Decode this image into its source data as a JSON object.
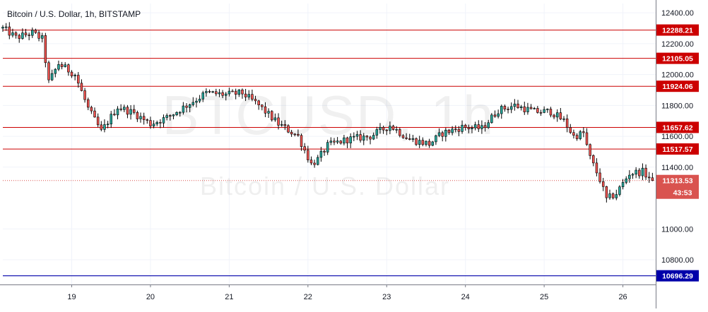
{
  "title": "Bitcoin / U.S. Dollar, 1h, BITSTAMP",
  "watermark": {
    "symbol": "BTCUSD, 1h",
    "description": "Bitcoin / U.S. Dollar"
  },
  "colors": {
    "up": "#26a69a",
    "down": "#ef5350",
    "candle_up_fill": "#ffffff",
    "candle_outline": "#000000",
    "level_line": "#cc0000",
    "level_badge": "#cc0000",
    "blue_line": "#0000aa",
    "current_badge": "#d9534f",
    "grid": "#f0f3fa",
    "axis": "#787b86"
  },
  "chart_data": {
    "type": "candlestick",
    "title": "Bitcoin / U.S. Dollar, 1h, BITSTAMP",
    "x_axis": {
      "ticks": [
        "19",
        "20",
        "21",
        "22",
        "23",
        "24",
        "25",
        "26"
      ],
      "tick_hours": [
        17,
        41,
        65,
        89,
        113,
        137,
        161,
        185
      ],
      "hour_range": [
        -4,
        195
      ]
    },
    "y_axis": {
      "range": [
        10640,
        12460
      ],
      "ticks": [
        12400,
        12200,
        12000,
        11800,
        11600,
        11400,
        11000,
        10800
      ],
      "tick_labels": [
        "12400.00",
        "12200.00",
        "12000.00",
        "11800.00",
        "11600.00",
        "11400.00",
        "11000.00",
        "10800.00"
      ]
    },
    "key_points": [
      [
        -4,
        12300
      ],
      [
        0,
        12240
      ],
      [
        5,
        12270
      ],
      [
        8,
        12230
      ],
      [
        10,
        11950
      ],
      [
        13,
        12070
      ],
      [
        18,
        12000
      ],
      [
        22,
        11780
      ],
      [
        26,
        11630
      ],
      [
        31,
        11790
      ],
      [
        36,
        11750
      ],
      [
        41,
        11680
      ],
      [
        46,
        11720
      ],
      [
        52,
        11800
      ],
      [
        58,
        11880
      ],
      [
        64,
        11870
      ],
      [
        69,
        11880
      ],
      [
        74,
        11800
      ],
      [
        80,
        11680
      ],
      [
        86,
        11600
      ],
      [
        90,
        11420
      ],
      [
        92,
        11450
      ],
      [
        95,
        11540
      ],
      [
        101,
        11580
      ],
      [
        108,
        11600
      ],
      [
        114,
        11670
      ],
      [
        120,
        11580
      ],
      [
        126,
        11550
      ],
      [
        130,
        11620
      ],
      [
        136,
        11660
      ],
      [
        142,
        11650
      ],
      [
        147,
        11770
      ],
      [
        152,
        11800
      ],
      [
        158,
        11760
      ],
      [
        163,
        11760
      ],
      [
        167,
        11700
      ],
      [
        170,
        11600
      ],
      [
        173,
        11620
      ],
      [
        175,
        11460
      ],
      [
        178,
        11320
      ],
      [
        180,
        11190
      ],
      [
        183,
        11230
      ],
      [
        187,
        11360
      ],
      [
        191,
        11370
      ],
      [
        194,
        11313.53
      ]
    ],
    "levels": [
      {
        "value": 12288.21,
        "label": "12288.21"
      },
      {
        "value": 12105.05,
        "label": "12105.05"
      },
      {
        "value": 11924.06,
        "label": "11924.06"
      },
      {
        "value": 11657.62,
        "label": "11657.62"
      },
      {
        "value": 11517.57,
        "label": "11517.57"
      }
    ],
    "blue_level": {
      "value": 10696.29,
      "label": "10696.29"
    },
    "current_price": {
      "value": 11313.53,
      "label": "11313.53",
      "countdown": "43:53"
    }
  }
}
